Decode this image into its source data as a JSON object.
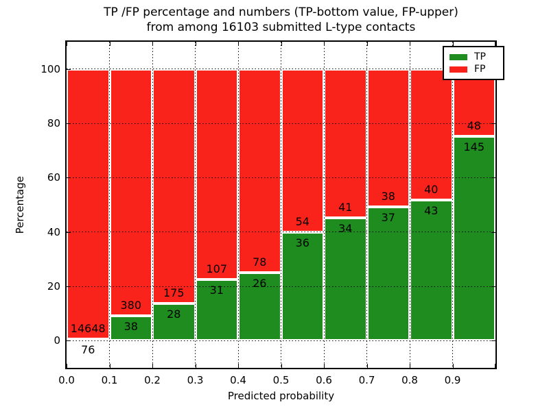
{
  "figure": {
    "title_line1": "TP /FP percentage and numbers (TP-bottom value, FP-upper)",
    "title_line2": "from among 16103 submitted L-type contacts",
    "xlabel": "Predicted probability",
    "ylabel": "Percentage"
  },
  "legend": {
    "position": "upper-right",
    "items": [
      {
        "label": "TP",
        "color": "#1e8c1e"
      },
      {
        "label": "FP",
        "color": "#fa231c"
      }
    ]
  },
  "chart_data": {
    "type": "bar",
    "subtype": "stacked-100-percent-histogram",
    "title": "TP /FP percentage and numbers (TP-bottom value, FP-upper) from among 16103 submitted L-type contacts",
    "xlabel": "Predicted probability",
    "ylabel": "Percentage",
    "total_submitted": 16103,
    "bins": [
      "0.0-0.1",
      "0.1-0.2",
      "0.2-0.3",
      "0.3-0.4",
      "0.4-0.5",
      "0.5-0.6",
      "0.6-0.7",
      "0.7-0.8",
      "0.8-0.9",
      "0.9-1.0"
    ],
    "series": [
      {
        "name": "TP",
        "color": "#1e8c1e",
        "counts": [
          76,
          38,
          28,
          31,
          26,
          36,
          34,
          37,
          43,
          145
        ]
      },
      {
        "name": "FP",
        "color": "#fa231c",
        "counts": [
          14648,
          380,
          175,
          107,
          78,
          54,
          41,
          38,
          40,
          48
        ]
      }
    ],
    "tp_percent": [
      0.5,
      9.1,
      13.8,
      22.5,
      25.0,
      40.0,
      45.3,
      49.3,
      51.8,
      75.1
    ],
    "xticks": [
      "0.0",
      "0.1",
      "0.2",
      "0.3",
      "0.4",
      "0.5",
      "0.6",
      "0.7",
      "0.8",
      "0.9"
    ],
    "yticks": [
      "0",
      "20",
      "40",
      "60",
      "80",
      "100"
    ],
    "xlim": [
      0.0,
      1.0
    ],
    "ylim": [
      -10,
      110
    ],
    "grid": "dotted",
    "legend_position": "upper right"
  }
}
